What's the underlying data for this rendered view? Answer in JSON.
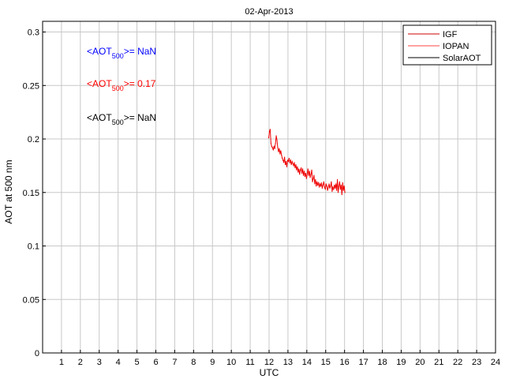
{
  "chart_data": {
    "type": "line",
    "title": "02-Apr-2013",
    "xlabel": "UTC",
    "ylabel": "AOT at 500 nm",
    "xlim": [
      0,
      24
    ],
    "ylim": [
      0,
      0.31
    ],
    "xticks": [
      1,
      2,
      3,
      4,
      5,
      6,
      7,
      8,
      9,
      10,
      11,
      12,
      13,
      14,
      15,
      16,
      17,
      18,
      19,
      20,
      21,
      22,
      23,
      24
    ],
    "yticks": [
      0,
      0.05,
      0.1,
      0.15,
      0.2,
      0.25,
      0.3
    ],
    "ytick_labels": [
      "0",
      "0.05",
      "0.1",
      "0.15",
      "0.2",
      "0.25",
      "0.3"
    ],
    "grid": true,
    "legend": {
      "placement": "top-right",
      "entries": [
        {
          "name": "IGF",
          "color": "#cc0000"
        },
        {
          "name": "IOPAN",
          "color": "#ff4444"
        },
        {
          "name": "SolarAOT",
          "color": "#000000"
        }
      ]
    },
    "annotations": [
      {
        "prefix": "<AOT",
        "sub": "500",
        "suffix": ">=  NaN",
        "color": "#0000ff"
      },
      {
        "prefix": "<AOT",
        "sub": "500",
        "suffix": ">= 0.17",
        "color": "#ff0000"
      },
      {
        "prefix": "<AOT",
        "sub": "500",
        "suffix": ">=  NaN",
        "color": "#000000"
      }
    ],
    "series": [
      {
        "name": "IGF",
        "color": "#ee0000",
        "x": [
          11.98,
          12.02,
          12.06,
          12.1,
          12.14,
          12.18,
          12.22,
          12.26,
          12.3,
          12.34,
          12.38,
          12.42,
          12.46,
          12.5,
          12.54,
          12.58,
          12.62,
          12.66,
          12.7,
          12.74,
          12.78,
          12.82,
          12.86,
          12.9,
          12.94,
          12.98,
          13.02,
          13.06,
          13.1,
          13.14,
          13.18,
          13.22,
          13.26,
          13.3,
          13.34,
          13.38,
          13.42,
          13.46,
          13.5,
          13.54,
          13.58,
          13.62,
          13.66,
          13.7,
          13.74,
          13.78,
          13.82,
          13.86,
          13.9,
          13.94,
          13.98,
          14.02,
          14.06,
          14.1,
          14.14,
          14.18,
          14.22,
          14.26,
          14.3,
          14.34,
          14.38,
          14.42,
          14.46,
          14.5,
          14.54,
          14.58,
          14.62,
          14.66,
          14.7,
          14.74,
          14.78,
          14.82,
          14.86,
          14.9,
          14.94,
          14.98,
          15.02,
          15.06,
          15.1,
          15.14,
          15.18,
          15.22,
          15.26,
          15.3,
          15.34,
          15.38,
          15.42,
          15.46,
          15.5,
          15.54,
          15.58,
          15.62,
          15.66,
          15.7,
          15.74,
          15.78,
          15.82,
          15.86,
          15.9,
          15.94,
          15.98,
          16.02
        ],
        "y": [
          0.201,
          0.207,
          0.209,
          0.196,
          0.193,
          0.192,
          0.19,
          0.193,
          0.191,
          0.196,
          0.203,
          0.199,
          0.192,
          0.188,
          0.191,
          0.186,
          0.189,
          0.185,
          0.182,
          0.18,
          0.178,
          0.183,
          0.176,
          0.179,
          0.174,
          0.18,
          0.179,
          0.182,
          0.178,
          0.18,
          0.176,
          0.179,
          0.177,
          0.175,
          0.178,
          0.173,
          0.176,
          0.171,
          0.174,
          0.169,
          0.172,
          0.167,
          0.171,
          0.173,
          0.168,
          0.172,
          0.166,
          0.17,
          0.165,
          0.168,
          0.163,
          0.167,
          0.172,
          0.166,
          0.17,
          0.164,
          0.167,
          0.171,
          0.16,
          0.163,
          0.166,
          0.158,
          0.162,
          0.156,
          0.16,
          0.157,
          0.159,
          0.155,
          0.158,
          0.156,
          0.159,
          0.154,
          0.157,
          0.16,
          0.155,
          0.153,
          0.158,
          0.156,
          0.152,
          0.155,
          0.158,
          0.154,
          0.156,
          0.16,
          0.151,
          0.155,
          0.153,
          0.157,
          0.154,
          0.158,
          0.152,
          0.162,
          0.15,
          0.156,
          0.16,
          0.153,
          0.157,
          0.148,
          0.159,
          0.152,
          0.156,
          0.15
        ]
      }
    ]
  }
}
